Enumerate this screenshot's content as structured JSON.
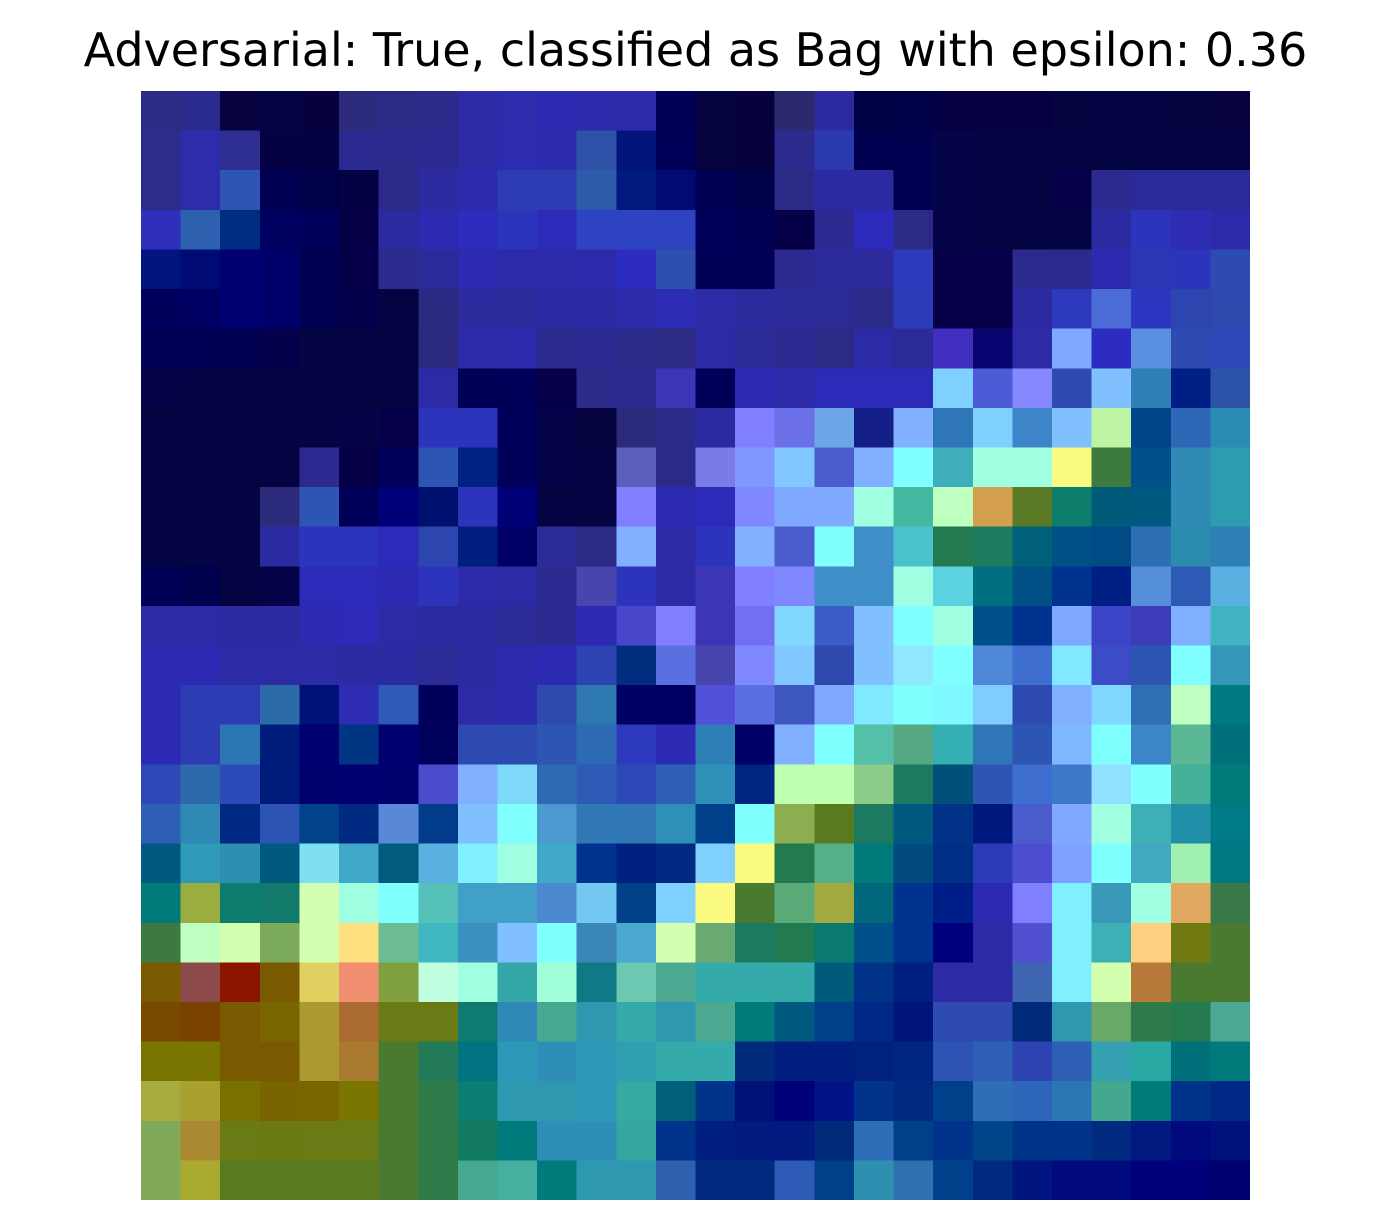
{
  "chart_data": {
    "type": "heatmap",
    "title": "Adversarial: True, classified as Bag with epsilon: 0.36",
    "rows": 28,
    "cols": 28,
    "axes_visible": false,
    "grid": false,
    "legend": "none",
    "colors_rgb_hex": [
      [
        "#2d2c85",
        "#2b2a8f",
        "#060340",
        "#060344",
        "#06023d",
        "#2c2a7a",
        "#2c2a86",
        "#2c2a8a",
        "#2c2aa4",
        "#2d2cad",
        "#2c2ab0",
        "#2c2aaa",
        "#2c2aa9",
        "#000055",
        "#050440",
        "#06023d",
        "#2c2a6e",
        "#2c2a9e",
        "#000044",
        "#000046",
        "#040042",
        "#050042",
        "#050042",
        "#050440",
        "#060342",
        "#050442",
        "#05043f",
        "#06033f"
      ],
      [
        "#2d2c8c",
        "#2d2cab",
        "#2f2f93",
        "#050243",
        "#050243",
        "#2c2a90",
        "#2c2a8d",
        "#2c2a91",
        "#2c2aa4",
        "#2d2cb0",
        "#2c2aac",
        "#2f52a8",
        "#00147a",
        "#000059",
        "#050440",
        "#06023d",
        "#2c2a8c",
        "#2c3ab0",
        "#000051",
        "#000050",
        "#050448",
        "#050442",
        "#050442",
        "#050442",
        "#050442",
        "#050442",
        "#050442",
        "#050442"
      ],
      [
        "#2d2c8c",
        "#2d2cab",
        "#2d55b4",
        "#000052",
        "#000049",
        "#050244",
        "#2c2a88",
        "#2c2aa0",
        "#2c2aad",
        "#2d3cb3",
        "#2d3cb3",
        "#2d5aa9",
        "#001a7f",
        "#000a71",
        "#000052",
        "#000049",
        "#2c2a87",
        "#2c2aa0",
        "#2c2a9e",
        "#000050",
        "#050448",
        "#050442",
        "#050442",
        "#050049",
        "#2c2a8f",
        "#2c2a9a",
        "#2c2a9a",
        "#2c2a9a"
      ],
      [
        "#302fbc",
        "#2d60af",
        "#002d82",
        "#000060",
        "#00005b",
        "#050045",
        "#2c2a9f",
        "#2c2ab1",
        "#2d2cbc",
        "#2d34bc",
        "#2c2ab8",
        "#2d43c1",
        "#2d43c1",
        "#2d43c1",
        "#00005b",
        "#000052",
        "#050048",
        "#2c2a91",
        "#2c2abb",
        "#2c2a86",
        "#050448",
        "#050442",
        "#050442",
        "#050445",
        "#2c2aa1",
        "#2d34bc",
        "#2d2cb3",
        "#2c2aa9"
      ],
      [
        "#00157f",
        "#000a74",
        "#000073",
        "#00006b",
        "#000053",
        "#050049",
        "#2c2a8c",
        "#2c2a9a",
        "#2c2ab0",
        "#2c2aa9",
        "#2c2aa9",
        "#2c2aab",
        "#2d2cc0",
        "#2d4fb0",
        "#000057",
        "#000057",
        "#2c2a8e",
        "#2c2a9d",
        "#2c2a9d",
        "#2d3abd",
        "#050048",
        "#050048",
        "#2c2a8e",
        "#2c2a8d",
        "#2c2ab1",
        "#2c37b4",
        "#2d34bc",
        "#2d4bb1"
      ],
      [
        "#00005c",
        "#000062",
        "#000072",
        "#00006b",
        "#000053",
        "#05004b",
        "#060342",
        "#2c2a80",
        "#2c2a9c",
        "#2c2a9a",
        "#2c2aa3",
        "#2c2aa3",
        "#2c2aa8",
        "#2d2cb5",
        "#2c2aa4",
        "#2c2a9d",
        "#2c2a99",
        "#2c2a94",
        "#2c2a89",
        "#2c3ab8",
        "#050048",
        "#050048",
        "#2c2aa0",
        "#2d3abd",
        "#4b6cd6",
        "#2d36c0",
        "#2d45ae",
        "#2d49ae"
      ],
      [
        "#000056",
        "#000054",
        "#000050",
        "#05004b",
        "#050445",
        "#050442",
        "#050442",
        "#2c2a80",
        "#2c2aa8",
        "#2c2aaa",
        "#2c2a8c",
        "#2c2a90",
        "#2c2a8a",
        "#2c2a82",
        "#2c2aa4",
        "#2c2a97",
        "#2c2a91",
        "#2c2a86",
        "#2c2aa5",
        "#2c2a96",
        "#402ebe",
        "#0a0470",
        "#2c2aa4",
        "#7faaff",
        "#2d2cc0",
        "#5a90e0",
        "#2d4bb1",
        "#2d49b8"
      ],
      [
        "#050448",
        "#050445",
        "#050442",
        "#050442",
        "#050442",
        "#050442",
        "#050442",
        "#2c2aa4",
        "#000055",
        "#000058",
        "#050049",
        "#2c2a8a",
        "#2c2a8e",
        "#3c36b7",
        "#000058",
        "#2c2ab1",
        "#2c2aa9",
        "#2c2ab8",
        "#2c2ab8",
        "#2c2ab8",
        "#80d0ff",
        "#4b5cd6",
        "#8588ff",
        "#2d4bb1",
        "#80c0ff",
        "#2e7fb5",
        "#001f84",
        "#2d53a9"
      ],
      [
        "#050442",
        "#050442",
        "#050442",
        "#050442",
        "#050442",
        "#050446",
        "#050049",
        "#2d34bc",
        "#2d34bc",
        "#00005a",
        "#050448",
        "#050440",
        "#2c2a7a",
        "#2c2a88",
        "#2c2aa0",
        "#7f7fff",
        "#6b70e8",
        "#6ca6e8",
        "#131e86",
        "#80b0ff",
        "#2e76b8",
        "#80d0ff",
        "#3e84c8",
        "#80c0ff",
        "#bdf5a4",
        "#00448a",
        "#2d67b6",
        "#2a8cb4"
      ],
      [
        "#050442",
        "#050442",
        "#050442",
        "#050442",
        "#2c2a90",
        "#050045",
        "#000058",
        "#2d55b4",
        "#002084",
        "#00005a",
        "#050448",
        "#050442",
        "#5d5dbd",
        "#2c2a88",
        "#7b7be8",
        "#7f98ff",
        "#80c8ff",
        "#4b5ccc",
        "#80b0ff",
        "#7fffff",
        "#3eaeba",
        "#a0ffe0",
        "#a0ffe0",
        "#fafa80",
        "#3c7a3d",
        "#00508a",
        "#2f8ab5",
        "#2c9cb0"
      ],
      [
        "#050442",
        "#050442",
        "#050442",
        "#2c2a7a",
        "#2d55b4",
        "#000058",
        "#000078",
        "#00106f",
        "#2d34bc",
        "#000077",
        "#050442",
        "#050442",
        "#7f7fff",
        "#2c2ab1",
        "#2c2ab8",
        "#7f88ff",
        "#7fa8ff",
        "#7faaff",
        "#a0ffe0",
        "#44b8a0",
        "#bfffbf",
        "#d4a050",
        "#5a7a25",
        "#0d7d6c",
        "#005a7a",
        "#005a80",
        "#2f8ab5",
        "#2c9cb0"
      ],
      [
        "#050442",
        "#050445",
        "#050442",
        "#2c2aa0",
        "#2d34bc",
        "#2d34bc",
        "#2c2ab8",
        "#2d45ae",
        "#001f7e",
        "#000066",
        "#2c2a96",
        "#2c2a84",
        "#80b0ff",
        "#2c2aa4",
        "#2d34bc",
        "#80b0ff",
        "#4b5ccc",
        "#80ffff",
        "#3e8ec8",
        "#4ac2cc",
        "#247a50",
        "#1d7c60",
        "#00607a",
        "#005086",
        "#004a86",
        "#2d6fb5",
        "#2c8cae",
        "#2d80b4"
      ],
      [
        "#000057",
        "#00004f",
        "#050442",
        "#050448",
        "#2c2ab8",
        "#2c2ab8",
        "#2c2ab3",
        "#2d34bc",
        "#2c2aa9",
        "#2c2aa4",
        "#2c2a91",
        "#4846ae",
        "#2d34bc",
        "#2c2aa4",
        "#3c36b7",
        "#7f7fff",
        "#7f88ff",
        "#3e8ec8",
        "#3e8ec8",
        "#a0ffe0",
        "#5ad2e0",
        "#007080",
        "#005086",
        "#00338f",
        "#001f84",
        "#568fd9",
        "#2d5ab4",
        "#5ab0e0"
      ],
      [
        "#2c2aa4",
        "#2c2aa4",
        "#2c2aa0",
        "#2c2aa0",
        "#2c2ab3",
        "#2c2ab6",
        "#2c2aa4",
        "#2c2aa0",
        "#2c2aa0",
        "#2c2a96",
        "#2c2a90",
        "#2c2ab3",
        "#4a46cc",
        "#7f7fff",
        "#3c36b7",
        "#7070f0",
        "#80d8ff",
        "#3c5cc8",
        "#80c0ff",
        "#7fffff",
        "#a0ffe0",
        "#00508a",
        "#00338f",
        "#7fa8ff",
        "#3c44c8",
        "#3c3cb8",
        "#7fb0ff",
        "#40b4c0"
      ],
      [
        "#2c2ab3",
        "#2c2ab3",
        "#2c2aa4",
        "#2c2aa4",
        "#2c2aa4",
        "#2c2aa0",
        "#2c2aa0",
        "#2c2a96",
        "#2c2aa0",
        "#2c2aac",
        "#2c2ab3",
        "#2d43b1",
        "#002d7e",
        "#5a70e0",
        "#4846ae",
        "#7f88ff",
        "#80c8ff",
        "#2d49ae",
        "#80c0ff",
        "#90e8ff",
        "#7fffff",
        "#5088d9",
        "#3e6ed0",
        "#80e8ff",
        "#3c4cc8",
        "#2d55b4",
        "#7fffff",
        "#3696b8"
      ],
      [
        "#2c2ab3",
        "#2d3cb3",
        "#2d3cb3",
        "#2c6aa8",
        "#001178",
        "#2d2cb3",
        "#2d5ab4",
        "#00005c",
        "#2c2aa4",
        "#2c2aac",
        "#2d4baf",
        "#2e78b0",
        "#000065",
        "#000062",
        "#5050d8",
        "#5a70e0",
        "#3c58c0",
        "#7fa8ff",
        "#80e8ff",
        "#80ffff",
        "#80f8ff",
        "#80ccff",
        "#2d4bb1",
        "#80b0ff",
        "#80d8ff",
        "#2f6fb5",
        "#bfffbf",
        "#007a80"
      ],
      [
        "#2c2ab3",
        "#2d3cb3",
        "#2d76b4",
        "#001c7a",
        "#000070",
        "#003583",
        "#000070",
        "#00005d",
        "#2d4ab1",
        "#2d4ab1",
        "#2d55b4",
        "#2d6ab4",
        "#2d3abd",
        "#2c2ab3",
        "#2e7fb5",
        "#000069",
        "#80b0ff",
        "#80ffff",
        "#54c0a8",
        "#54a882",
        "#34b0b4",
        "#2e76b8",
        "#2d55b4",
        "#80b8ff",
        "#80ffff",
        "#3c86c8",
        "#5ab894",
        "#00707a"
      ],
      [
        "#2d49b8",
        "#2d6aac",
        "#2d4bb8",
        "#001c7a",
        "#00006f",
        "#000070",
        "#00006f",
        "#4b4ccc",
        "#80b0ff",
        "#7ed8f8",
        "#2d6ab4",
        "#2d5ab4",
        "#2d49b8",
        "#2d60b4",
        "#2e90b8",
        "#002580",
        "#bfffb0",
        "#bfffb0",
        "#8ccc88",
        "#1b7a60",
        "#00507a",
        "#2d55b4",
        "#3e6ed0",
        "#3e78c8",
        "#90e0ff",
        "#80ffff",
        "#44b098",
        "#007a7a"
      ],
      [
        "#2d60b4",
        "#2e8ab5",
        "#002983",
        "#2d53b4",
        "#00438a",
        "#002a82",
        "#5a88d9",
        "#003c8a",
        "#80c0ff",
        "#80ffff",
        "#4c98d0",
        "#2f78b5",
        "#2f78b5",
        "#2e90b8",
        "#00408a",
        "#80ffff",
        "#8cae50",
        "#5a7a20",
        "#1b7a60",
        "#005a80",
        "#003388",
        "#00197e",
        "#4b5ccc",
        "#80a8ff",
        "#a0ffe0",
        "#3cb0b4",
        "#2090a8",
        "#007a86"
      ],
      [
        "#005a80",
        "#2e9ab8",
        "#2e90b0",
        "#005a80",
        "#7ee0f0",
        "#40a8c8",
        "#005c7a",
        "#5ab0e0",
        "#80f0ff",
        "#a0ffe0",
        "#40a8c8",
        "#00338f",
        "#002080",
        "#002a82",
        "#80d0ff",
        "#fafa80",
        "#247a50",
        "#54b088",
        "#007a7a",
        "#004a80",
        "#002f88",
        "#2c3ab8",
        "#4c4cd0",
        "#80a0ff",
        "#80ffff",
        "#40a8c0",
        "#a0f0b0",
        "#007a80"
      ],
      [
        "#007a7a",
        "#9bac40",
        "#0d7d70",
        "#127a6a",
        "#d4ffb0",
        "#a0ffe0",
        "#80ffff",
        "#54c0b8",
        "#40a0c8",
        "#40a0c8",
        "#4c88d0",
        "#72c8f0",
        "#00418a",
        "#80d0ff",
        "#fafa80",
        "#4a7a30",
        "#5aaa78",
        "#a0aa40",
        "#00687a",
        "#00338f",
        "#001e88",
        "#2c2ab3",
        "#8080ff",
        "#80f0ff",
        "#3a98b8",
        "#a0ffe0",
        "#e0a860",
        "#3a7a48"
      ],
      [
        "#3e7a40",
        "#bfffbf",
        "#d4ffb0",
        "#7aaa5a",
        "#d4ffb0",
        "#ffe080",
        "#6cbc94",
        "#40b8c0",
        "#3a90c0",
        "#80c0ff",
        "#80ffff",
        "#3a86b8",
        "#4aa8d0",
        "#d4ffb0",
        "#6aaa70",
        "#1b7a60",
        "#227a50",
        "#0a7a70",
        "#00508a",
        "#00338f",
        "#00007f",
        "#2c2aa4",
        "#5050d0",
        "#80f0ff",
        "#3cb0b4",
        "#ffd080",
        "#707a10",
        "#4a7a30"
      ],
      [
        "#7a5a00",
        "#8c4a4a",
        "#8a1600",
        "#7a5a00",
        "#e0d060",
        "#f09070",
        "#80a040",
        "#bfffe0",
        "#a0ffe0",
        "#34a8a8",
        "#a0ffd8",
        "#0f7a86",
        "#6cc8b0",
        "#4ca890",
        "#34aaaa",
        "#34aaaa",
        "#34aaaa",
        "#005a7a",
        "#003388",
        "#002080",
        "#2c2aa4",
        "#2c2aa4",
        "#3e66b0",
        "#80f0ff",
        "#d4ffb0",
        "#b87a3a",
        "#4a7a30",
        "#4a7a30"
      ],
      [
        "#7a4a00",
        "#7a4200",
        "#7a5a00",
        "#7a6600",
        "#aa9a30",
        "#aa6a30",
        "#6a7a15",
        "#6a7a15",
        "#0f7a70",
        "#2e88b8",
        "#46a890",
        "#2e98b0",
        "#34aaaa",
        "#2e98b0",
        "#4ca890",
        "#007a7a",
        "#005a80",
        "#00408a",
        "#002886",
        "#00157a",
        "#2d4bb1",
        "#2d4bb1",
        "#002a7a",
        "#2e98b0",
        "#6aa868",
        "#2e7a48",
        "#267a50",
        "#4ca890"
      ],
      [
        "#7a7400",
        "#7a7400",
        "#7a5a00",
        "#7a5a00",
        "#aa9a30",
        "#aa7a30",
        "#4a7a30",
        "#227a58",
        "#007480",
        "#2e98b8",
        "#2e8eb8",
        "#2e98b8",
        "#2ea0b0",
        "#34aaaa",
        "#34aaaa",
        "#002a7a",
        "#001f80",
        "#001f80",
        "#00217e",
        "#002580",
        "#2d53b4",
        "#2d60b4",
        "#2d43b1",
        "#2d60b4",
        "#34a0b0",
        "#2aa8a4",
        "#00707a",
        "#007a7a"
      ],
      [
        "#a8ac40",
        "#aaa030",
        "#7a7000",
        "#7a6400",
        "#7a6600",
        "#7a7400",
        "#4a7a30",
        "#2e7a48",
        "#0a7e70",
        "#2e98b0",
        "#2e98b0",
        "#2e98b8",
        "#34aaa0",
        "#00607a",
        "#00338a",
        "#00127a",
        "#00007a",
        "#001488",
        "#00338a",
        "#002a80",
        "#00408a",
        "#2e6eb8",
        "#2d66b8",
        "#2d76b4",
        "#44a890",
        "#007a7a",
        "#00338a",
        "#002886"
      ],
      [
        "#80aa5a",
        "#aa8a30",
        "#6a7a15",
        "#6a7a10",
        "#6a7a15",
        "#6a7a15",
        "#4a7a30",
        "#2e7a48",
        "#127a60",
        "#007a7a",
        "#2e8eb8",
        "#2e8eb8",
        "#34a8a0",
        "#00338a",
        "#001e80",
        "#001a80",
        "#001a80",
        "#002a7a",
        "#2e6eb8",
        "#00408a",
        "#00338a",
        "#00448a",
        "#00338a",
        "#00338a",
        "#002a80",
        "#001a80",
        "#000a7c",
        "#00107c"
      ],
      [
        "#80aa5a",
        "#aaaa30",
        "#5a7a20",
        "#5a7a20",
        "#5a7a20",
        "#5a7a20",
        "#4a7a30",
        "#2e7a48",
        "#46a890",
        "#46b0a0",
        "#007a7a",
        "#2e98b0",
        "#2e98b0",
        "#2e60b0",
        "#002a80",
        "#002a80",
        "#2d5ab4",
        "#00408a",
        "#2e90b0",
        "#2e70b0",
        "#00408a",
        "#002a80",
        "#00157f",
        "#000a7c",
        "#000a7c",
        "#00007a",
        "#00007a",
        "#000070"
      ]
    ]
  }
}
